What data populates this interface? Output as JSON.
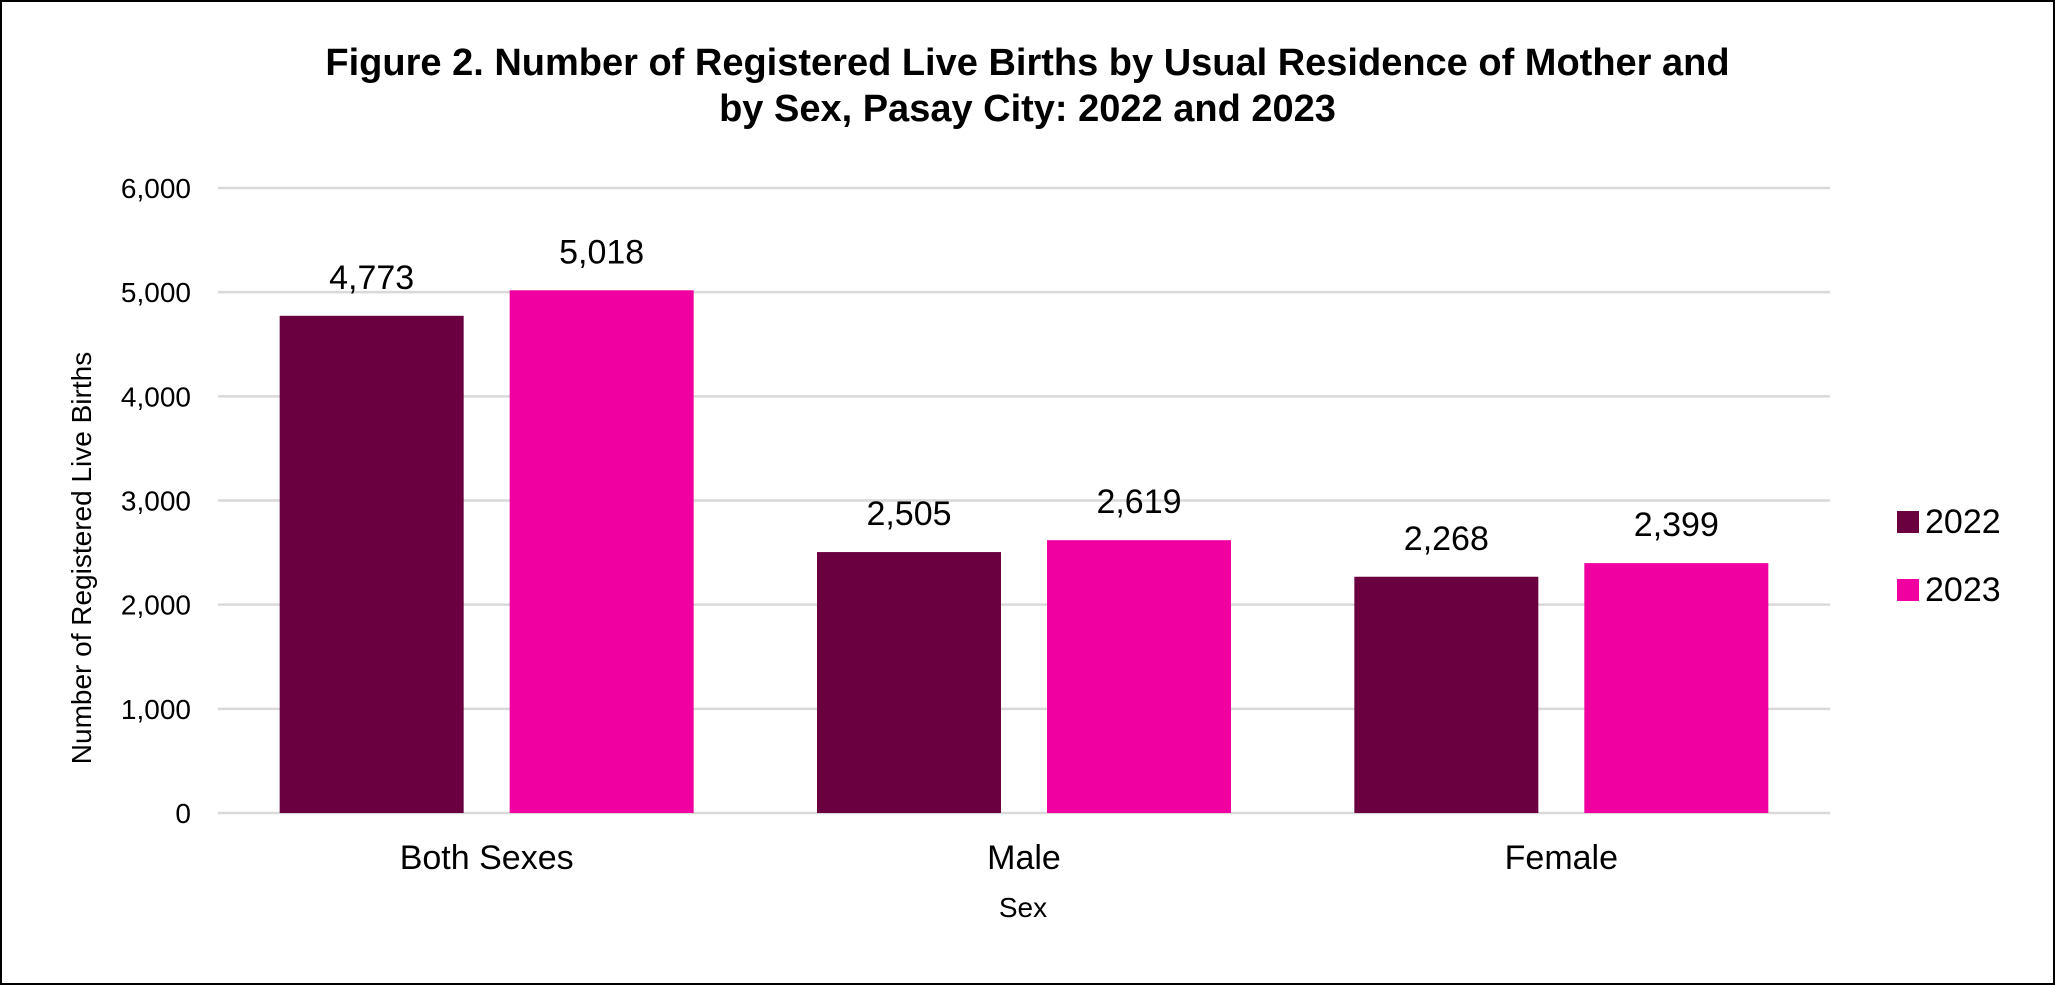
{
  "chart_data": {
    "type": "bar",
    "title_line1": "Figure 2. Number of Registered Live Births by Usual Residence of Mother and",
    "title_line2": "by Sex, Pasay City: 2022 and 2023",
    "xlabel": "Sex",
    "ylabel": "Number of Registered Live Births",
    "categories": [
      "Both Sexes",
      "Male",
      "Female"
    ],
    "series": [
      {
        "name": "2022",
        "color": "#6B0040",
        "values": [
          4773,
          2505,
          2268
        ],
        "labels": [
          "4,773",
          "2,505",
          "2,268"
        ]
      },
      {
        "name": "2023",
        "color": "#F000A0",
        "values": [
          5018,
          2619,
          2399
        ],
        "labels": [
          "5,018",
          "2,619",
          "2,399"
        ]
      }
    ],
    "ylim": [
      0,
      6000
    ],
    "yticks": [
      0,
      1000,
      2000,
      3000,
      4000,
      5000,
      6000
    ],
    "ytick_labels": [
      "0",
      "1,000",
      "2,000",
      "3,000",
      "4,000",
      "5,000",
      "6,000"
    ],
    "grid": true,
    "legend_position": "right"
  }
}
